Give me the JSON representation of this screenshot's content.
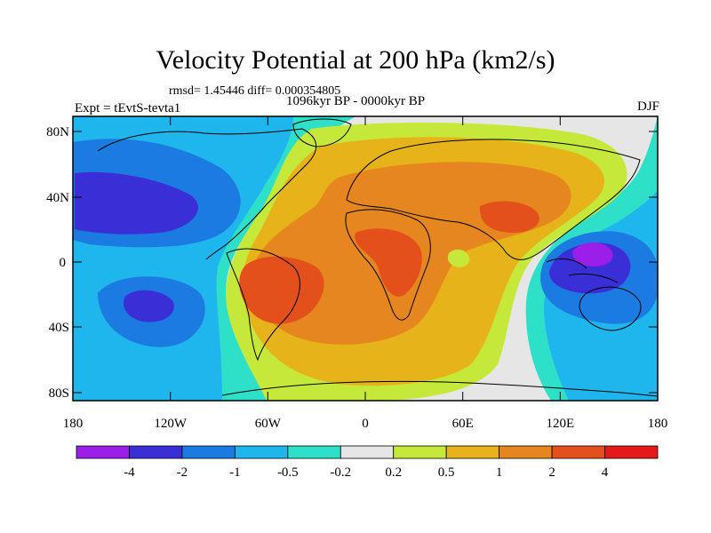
{
  "title": "Velocity Potential at 200 hPa (km2/s)",
  "stats_line": "rmsd= 1.45446 diff= 0.000354805",
  "period_line": "1096kyr BP - 0000kyr BP",
  "experiment_label": "Expt = tEvtS-tevta1",
  "season_label": "DJF",
  "map": {
    "y_tick_labels": [
      "80N",
      "40N",
      "0",
      "40S",
      "80S"
    ],
    "x_tick_labels": [
      "180",
      "120W",
      "60W",
      "0",
      "60E",
      "120E",
      "180"
    ]
  },
  "colorbar": {
    "labels": [
      "-4",
      "-2",
      "-1",
      "-0.5",
      "-0.2",
      "0.2",
      "0.5",
      "1",
      "2",
      "4"
    ],
    "colors": [
      "#9b1fe8",
      "#3a2fd6",
      "#1b7be0",
      "#1fb6ee",
      "#2ee0c8",
      "#e6e6e6",
      "#c6e83a",
      "#e6b41a",
      "#e6861e",
      "#e4501c",
      "#e41a1a"
    ]
  }
}
